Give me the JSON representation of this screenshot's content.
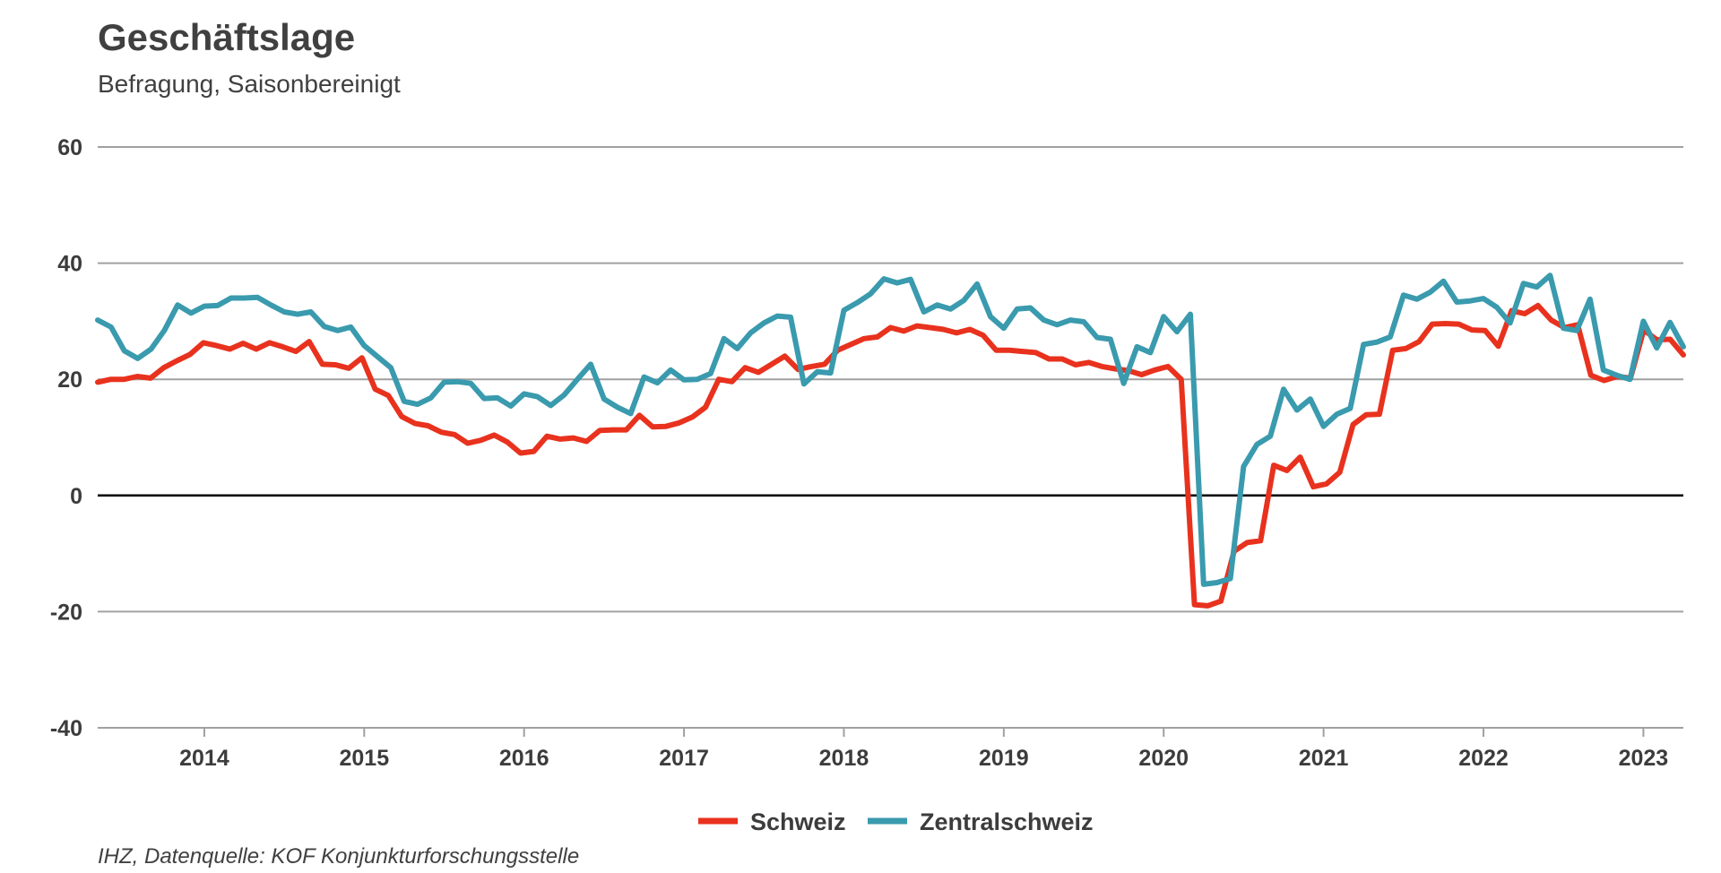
{
  "chart_data": {
    "type": "line",
    "title": "Geschäftslage",
    "subtitle": "Befragung, Saisonbereinigt",
    "source": "IHZ, Datenquelle: KOF Konjunkturforschungsstelle",
    "xlabel": "",
    "ylabel": "",
    "ylim": [
      -40,
      60
    ],
    "yticks": [
      -40,
      -20,
      0,
      20,
      40,
      60
    ],
    "xticks": [
      "2014",
      "2015",
      "2016",
      "2017",
      "2018",
      "2019",
      "2020",
      "2021",
      "2022",
      "2023"
    ],
    "grid": true,
    "legend_position": "bottom-center",
    "x_start": "2013-05",
    "x_end": "2023-04",
    "series": [
      {
        "name": "Schweiz",
        "color": "#e8321e",
        "values": [
          19.5,
          20,
          20,
          20.5,
          20.2,
          22,
          23.2,
          24.3,
          26.3,
          25.8,
          25.2,
          26.2,
          25.2,
          26.3,
          25.6,
          24.8,
          26.5,
          22.6,
          22.5,
          21.9,
          23.7,
          18.3,
          17.2,
          13.6,
          12.4,
          12,
          10.9,
          10.5,
          9,
          9.5,
          10.4,
          9.2,
          7.3,
          7.6,
          10.2,
          9.7,
          9.9,
          9.3,
          11.2,
          11.3,
          11.3,
          13.8,
          11.8,
          11.9,
          12.5,
          13.5,
          15.2,
          20,
          19.6,
          22,
          21.2,
          22.6,
          24,
          21.7,
          22.2,
          22.6,
          25,
          26,
          27,
          27.3,
          28.9,
          28.3,
          29.2,
          28.9,
          28.6,
          28,
          28.6,
          27.6,
          25,
          25,
          24.8,
          24.6,
          23.5,
          23.5,
          22.5,
          22.9,
          22.2,
          21.8,
          21.5,
          20.8,
          21.6,
          22.2,
          20,
          -18.8,
          -19,
          -18.2,
          -9.6,
          -8.1,
          -7.8,
          5.2,
          4.3,
          6.6,
          1.5,
          2,
          4,
          12.2,
          13.9,
          14,
          25,
          25.3,
          26.5,
          29.5,
          29.6,
          29.5,
          28.5,
          28.4,
          25.7,
          31.8,
          31.3,
          32.7,
          30.2,
          28.9,
          29.4,
          20.7,
          19.8,
          20.5,
          20.2,
          28.5,
          26.8,
          26.9,
          24.2
        ]
      },
      {
        "name": "Zentralschweiz",
        "color": "#3a9aae",
        "values": [
          30.2,
          29,
          24.9,
          23.6,
          25.2,
          28.4,
          32.8,
          31.4,
          32.6,
          32.7,
          34,
          34,
          34.1,
          32.8,
          31.6,
          31.2,
          31.6,
          29.1,
          28.4,
          29,
          25.8,
          23.9,
          22,
          16.2,
          15.7,
          16.8,
          19.5,
          19.6,
          19.3,
          16.7,
          16.8,
          15.4,
          17.5,
          17,
          15.5,
          17.3,
          20,
          22.6,
          16.6,
          15.2,
          14.1,
          20.4,
          19.4,
          21.6,
          19.9,
          20,
          21,
          27,
          25.3,
          28,
          29.7,
          30.9,
          30.7,
          19.2,
          21.3,
          21.1,
          31.9,
          33.2,
          34.7,
          37.3,
          36.6,
          37.2,
          31.6,
          32.8,
          32.1,
          33.6,
          36.4,
          30.8,
          28.8,
          32.1,
          32.3,
          30.2,
          29.4,
          30.2,
          29.9,
          27.2,
          26.9,
          19.3,
          25.6,
          24.6,
          30.8,
          28.2,
          31.2,
          -15.3,
          -15,
          -14.3,
          5,
          8.8,
          10.2,
          18.3,
          14.7,
          16.6,
          11.9,
          14,
          15,
          26,
          26.4,
          27.3,
          34.5,
          33.8,
          35,
          36.9,
          33.3,
          33.5,
          33.9,
          32.4,
          29.7,
          36.5,
          35.9,
          37.9,
          28.8,
          28.4,
          33.8,
          21.6,
          20.7,
          20,
          30,
          25.4,
          29.8,
          25.6
        ]
      }
    ]
  }
}
